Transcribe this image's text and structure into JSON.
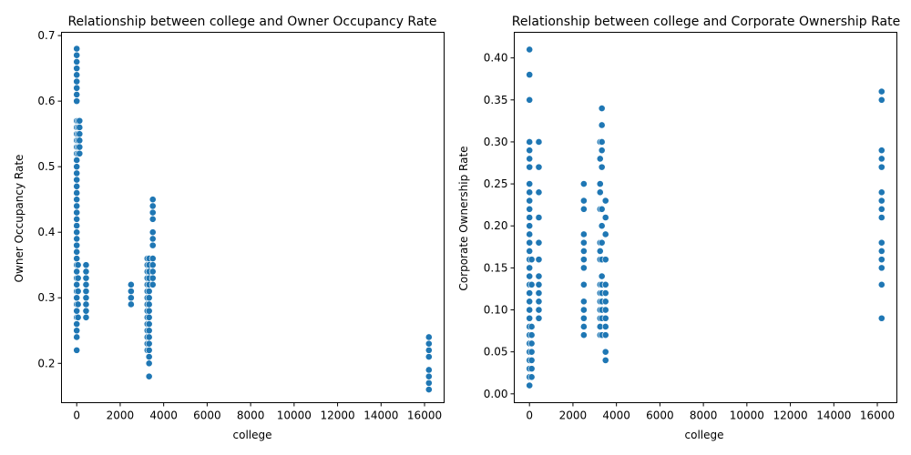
{
  "chart_data": [
    {
      "type": "scatter",
      "title": "Relationship between college and Owner Occupancy Rate",
      "xlabel": "college",
      "ylabel": "Owner Occupancy Rate",
      "xlim": [
        -700,
        16900
      ],
      "ylim": [
        0.14,
        0.705
      ],
      "xticks": [
        0,
        2000,
        4000,
        6000,
        8000,
        10000,
        12000,
        14000,
        16000
      ],
      "yticks": [
        0.2,
        0.3,
        0.4,
        0.5,
        0.6,
        0.7
      ],
      "xtick_labels": [
        "0",
        "2000",
        "4000",
        "6000",
        "8000",
        "10000",
        "12000",
        "14000",
        "16000"
      ],
      "ytick_labels": [
        "0.2",
        "0.3",
        "0.4",
        "0.5",
        "0.6",
        "0.7"
      ],
      "grid": false,
      "marker_color": "#1f77b4",
      "clusters": [
        {
          "x": 0,
          "y": [
            0.22,
            0.24,
            0.25,
            0.26,
            0.27,
            0.28,
            0.29,
            0.3,
            0.31,
            0.32,
            0.33,
            0.34,
            0.35,
            0.36,
            0.37,
            0.38,
            0.39,
            0.4,
            0.41,
            0.42,
            0.43,
            0.44,
            0.45,
            0.46,
            0.47,
            0.48,
            0.49,
            0.5,
            0.51,
            0.52,
            0.53,
            0.54,
            0.55,
            0.56,
            0.57,
            0.6,
            0.61,
            0.62,
            0.63,
            0.64,
            0.65,
            0.66,
            0.67,
            0.68
          ]
        },
        {
          "x": 60,
          "y": [
            0.27,
            0.29,
            0.31,
            0.33,
            0.35,
            0.52,
            0.53,
            0.54,
            0.55,
            0.56,
            0.57
          ]
        },
        {
          "x": 130,
          "y": [
            0.52,
            0.53,
            0.54,
            0.55,
            0.56,
            0.57
          ]
        },
        {
          "x": 430,
          "y": [
            0.27,
            0.28,
            0.29,
            0.3,
            0.31,
            0.32,
            0.33,
            0.34,
            0.35
          ]
        },
        {
          "x": 2500,
          "y": [
            0.29,
            0.3,
            0.31,
            0.32
          ]
        },
        {
          "x": 3250,
          "y": [
            0.22,
            0.23,
            0.24,
            0.25,
            0.26,
            0.27,
            0.28,
            0.29,
            0.3,
            0.31,
            0.32,
            0.33,
            0.34,
            0.35,
            0.36
          ]
        },
        {
          "x": 3330,
          "y": [
            0.18,
            0.2,
            0.21,
            0.22,
            0.23,
            0.24,
            0.25,
            0.26,
            0.27,
            0.28,
            0.29,
            0.3,
            0.31,
            0.32,
            0.33,
            0.34,
            0.35,
            0.36
          ]
        },
        {
          "x": 3500,
          "y": [
            0.32,
            0.33,
            0.34,
            0.35,
            0.36,
            0.38,
            0.39,
            0.4,
            0.42,
            0.43,
            0.44,
            0.45
          ]
        },
        {
          "x": 16200,
          "y": [
            0.16,
            0.17,
            0.18,
            0.19,
            0.21,
            0.22,
            0.23,
            0.24
          ]
        }
      ]
    },
    {
      "type": "scatter",
      "title": "Relationship between college and Corporate Ownership Rate",
      "xlabel": "college",
      "ylabel": "Corporate Ownership Rate",
      "xlim": [
        -700,
        16900
      ],
      "ylim": [
        -0.0105,
        0.4305
      ],
      "xticks": [
        0,
        2000,
        4000,
        6000,
        8000,
        10000,
        12000,
        14000,
        16000
      ],
      "yticks": [
        0.0,
        0.05,
        0.1,
        0.15,
        0.2,
        0.25,
        0.3,
        0.35,
        0.4
      ],
      "xtick_labels": [
        "0",
        "2000",
        "4000",
        "6000",
        "8000",
        "10000",
        "12000",
        "14000",
        "16000"
      ],
      "ytick_labels": [
        "0.00",
        "0.05",
        "0.10",
        "0.15",
        "0.20",
        "0.25",
        "0.30",
        "0.35",
        "0.40"
      ],
      "grid": false,
      "marker_color": "#1f77b4",
      "clusters": [
        {
          "x": 0,
          "y": [
            0.01,
            0.02,
            0.03,
            0.04,
            0.05,
            0.06,
            0.07,
            0.08,
            0.09,
            0.1,
            0.11,
            0.12,
            0.13,
            0.14,
            0.15,
            0.16,
            0.17,
            0.18,
            0.19,
            0.2,
            0.21,
            0.22,
            0.23,
            0.24,
            0.25,
            0.27,
            0.28,
            0.29,
            0.3,
            0.35,
            0.38,
            0.41
          ]
        },
        {
          "x": 100,
          "y": [
            0.02,
            0.03,
            0.04,
            0.05,
            0.06,
            0.07,
            0.08,
            0.13,
            0.16
          ]
        },
        {
          "x": 430,
          "y": [
            0.09,
            0.1,
            0.11,
            0.12,
            0.13,
            0.14,
            0.16,
            0.18,
            0.21,
            0.24,
            0.27,
            0.3
          ]
        },
        {
          "x": 2500,
          "y": [
            0.07,
            0.08,
            0.09,
            0.1,
            0.11,
            0.13,
            0.15,
            0.16,
            0.17,
            0.18,
            0.19,
            0.22,
            0.23,
            0.25
          ]
        },
        {
          "x": 3250,
          "y": [
            0.07,
            0.08,
            0.09,
            0.1,
            0.11,
            0.12,
            0.13,
            0.16,
            0.17,
            0.18,
            0.22,
            0.24,
            0.25,
            0.28,
            0.3
          ]
        },
        {
          "x": 3330,
          "y": [
            0.07,
            0.09,
            0.1,
            0.11,
            0.12,
            0.13,
            0.14,
            0.16,
            0.18,
            0.2,
            0.22,
            0.27,
            0.29,
            0.3,
            0.32,
            0.34
          ]
        },
        {
          "x": 3500,
          "y": [
            0.04,
            0.05,
            0.07,
            0.08,
            0.09,
            0.1,
            0.11,
            0.12,
            0.13,
            0.16,
            0.19,
            0.21,
            0.23
          ]
        },
        {
          "x": 16200,
          "y": [
            0.09,
            0.13,
            0.15,
            0.16,
            0.17,
            0.18,
            0.21,
            0.22,
            0.23,
            0.24,
            0.27,
            0.28,
            0.29,
            0.35,
            0.36
          ]
        }
      ]
    }
  ]
}
